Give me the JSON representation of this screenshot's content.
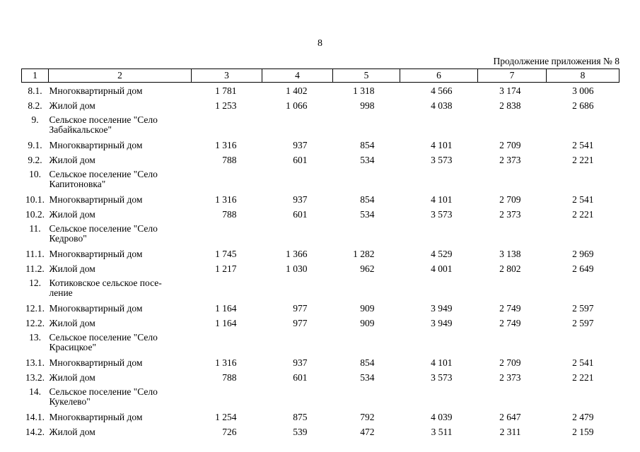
{
  "page": {
    "number": "8",
    "continuation_note": "Продолжение приложения № 8"
  },
  "table": {
    "column_headers": [
      "1",
      "2",
      "3",
      "4",
      "5",
      "6",
      "7",
      "8"
    ],
    "rows": [
      {
        "type": "item",
        "num": "8.1.",
        "name": "Многоквартирный дом",
        "values": [
          "1 781",
          "1 402",
          "1 318",
          "4 566",
          "3 174",
          "3 006"
        ]
      },
      {
        "type": "item",
        "num": "8.2.",
        "name": "Жилой дом",
        "values": [
          "1 253",
          "1 066",
          "998",
          "4 038",
          "2 838",
          "2 686"
        ]
      },
      {
        "type": "section",
        "num": "9.",
        "name": "Сельское поселение \"Село\nЗабайкальское\"",
        "values": []
      },
      {
        "type": "item",
        "num": "9.1.",
        "name": "Многоквартирный дом",
        "values": [
          "1 316",
          "937",
          "854",
          "4 101",
          "2 709",
          "2 541"
        ]
      },
      {
        "type": "item",
        "num": "9.2.",
        "name": "Жилой дом",
        "values": [
          "788",
          "601",
          "534",
          "3 573",
          "2 373",
          "2 221"
        ]
      },
      {
        "type": "section",
        "num": "10.",
        "name": "Сельское поселение \"Село\nКапитоновка\"",
        "values": []
      },
      {
        "type": "item",
        "num": "10.1.",
        "name": "Многоквартирный дом",
        "values": [
          "1 316",
          "937",
          "854",
          "4 101",
          "2 709",
          "2 541"
        ]
      },
      {
        "type": "item",
        "num": "10.2.",
        "name": "Жилой дом",
        "values": [
          "788",
          "601",
          "534",
          "3 573",
          "2 373",
          "2 221"
        ]
      },
      {
        "type": "section",
        "num": "11.",
        "name": "Сельское поселение \"Село\nКедрово\"",
        "values": []
      },
      {
        "type": "item",
        "num": "11.1.",
        "name": "Многоквартирный дом",
        "values": [
          "1 745",
          "1 366",
          "1 282",
          "4 529",
          "3 138",
          "2 969"
        ]
      },
      {
        "type": "item",
        "num": "11.2.",
        "name": "Жилой дом",
        "values": [
          "1 217",
          "1 030",
          "962",
          "4 001",
          "2 802",
          "2 649"
        ]
      },
      {
        "type": "section",
        "num": "12.",
        "name": "Котиковское сельское посе-\nление",
        "values": []
      },
      {
        "type": "item",
        "num": "12.1.",
        "name": "Многоквартирный дом",
        "values": [
          "1 164",
          "977",
          "909",
          "3 949",
          "2 749",
          "2 597"
        ]
      },
      {
        "type": "item",
        "num": "12.2.",
        "name": "Жилой дом",
        "values": [
          "1 164",
          "977",
          "909",
          "3 949",
          "2 749",
          "2 597"
        ]
      },
      {
        "type": "section",
        "num": "13.",
        "name": "Сельское поселение \"Село\nКрасицкое\"",
        "values": []
      },
      {
        "type": "item",
        "num": "13.1.",
        "name": "Многоквартирный дом",
        "values": [
          "1 316",
          "937",
          "854",
          "4 101",
          "2 709",
          "2 541"
        ]
      },
      {
        "type": "item",
        "num": "13.2.",
        "name": "Жилой дом",
        "values": [
          "788",
          "601",
          "534",
          "3 573",
          "2 373",
          "2 221"
        ]
      },
      {
        "type": "section",
        "num": "14.",
        "name": "Сельское поселение \"Село\nКукелево\"",
        "values": []
      },
      {
        "type": "item",
        "num": "14.1.",
        "name": "Многоквартирный дом",
        "values": [
          "1 254",
          "875",
          "792",
          "4 039",
          "2 647",
          "2 479"
        ]
      },
      {
        "type": "item",
        "num": "14.2.",
        "name": "Жилой дом",
        "values": [
          "726",
          "539",
          "472",
          "3 511",
          "2 311",
          "2 159"
        ]
      }
    ]
  }
}
